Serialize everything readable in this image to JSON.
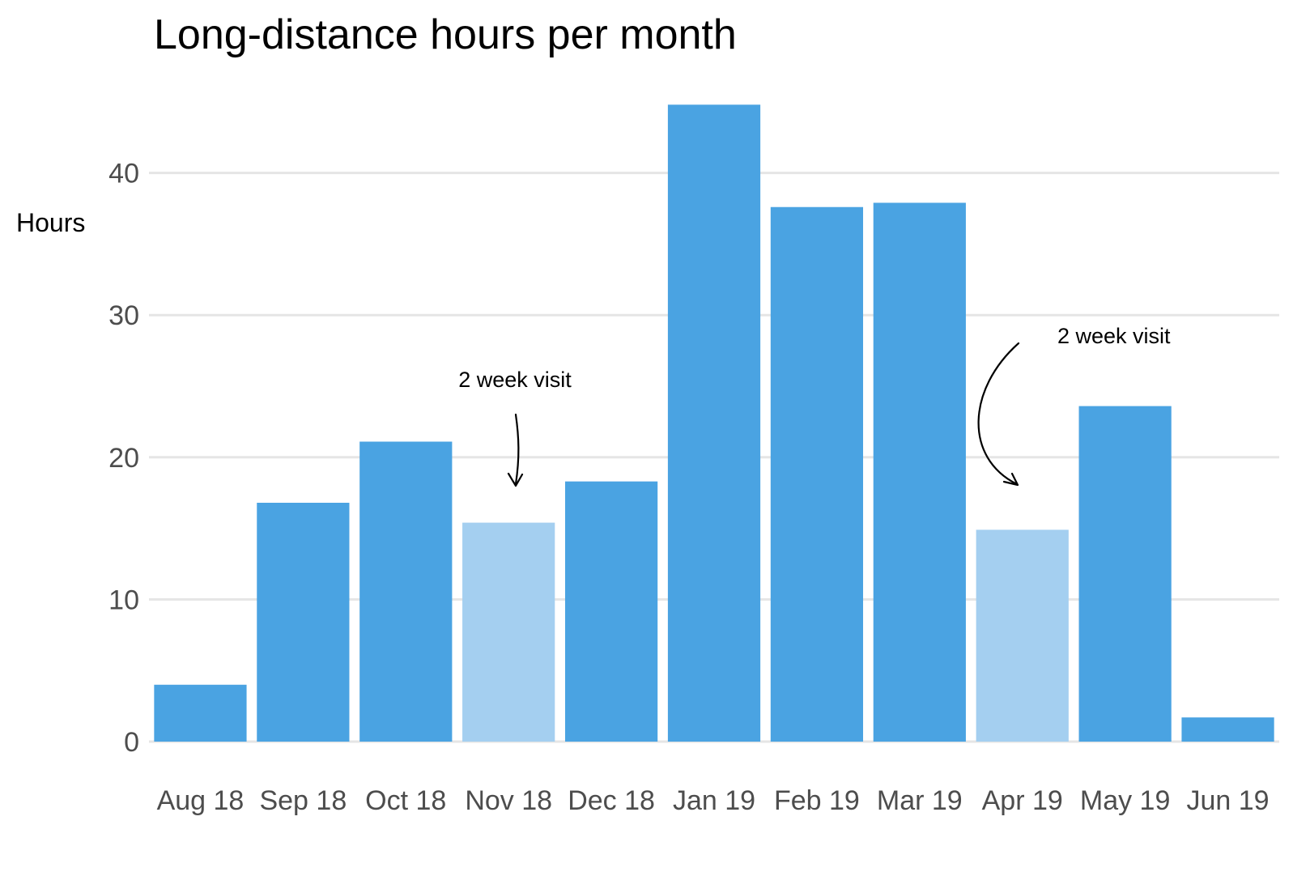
{
  "chart_data": {
    "type": "bar",
    "title": "Long-distance hours per month",
    "xlabel": "",
    "ylabel": "Hours",
    "ylim": [
      0,
      46
    ],
    "yticks": [
      0,
      10,
      20,
      30,
      40
    ],
    "grid": "horizontal",
    "categories": [
      "Aug 18",
      "Sep 18",
      "Oct 18",
      "Nov 18",
      "Dec 18",
      "Jan 19",
      "Feb 19",
      "Mar 19",
      "Apr 19",
      "May 19",
      "Jun 19"
    ],
    "values": [
      4.0,
      16.8,
      21.1,
      15.4,
      18.3,
      44.8,
      37.6,
      37.9,
      14.9,
      23.6,
      1.7
    ],
    "highlighted": [
      false,
      false,
      false,
      true,
      false,
      false,
      false,
      false,
      true,
      false,
      false
    ],
    "colors": {
      "bar": "#4aa3e2",
      "highlight": "#a4cff0",
      "grid": "#e5e5e5",
      "tick_text": "#4d4d4d"
    },
    "annotations": [
      {
        "text": "2 week visit",
        "target": "Nov 18"
      },
      {
        "text": "2 week visit",
        "target": "Apr 19"
      }
    ]
  }
}
